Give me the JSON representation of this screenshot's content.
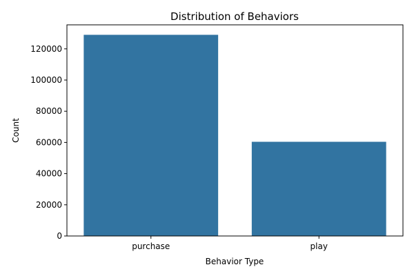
{
  "chart_data": {
    "type": "bar",
    "title": "Distribution of Behaviors",
    "xlabel": "Behavior Type",
    "ylabel": "Count",
    "categories": [
      "purchase",
      "play"
    ],
    "values": [
      129000,
      60400
    ],
    "ylim": [
      0,
      135400
    ],
    "yticks": [
      0,
      20000,
      40000,
      60000,
      80000,
      100000,
      120000
    ],
    "bar_color": "#3274a1",
    "grid": false
  }
}
